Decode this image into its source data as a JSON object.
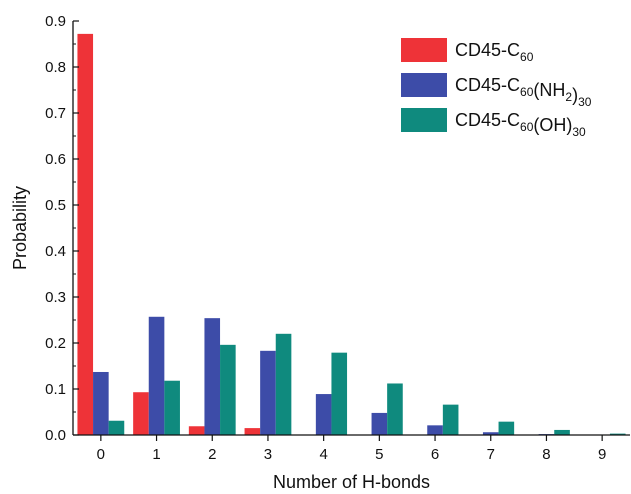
{
  "chart_data": {
    "type": "bar",
    "title": "",
    "xlabel": "Number of H-bonds",
    "ylabel": "Probability",
    "categories": [
      "0",
      "1",
      "2",
      "3",
      "4",
      "5",
      "6",
      "7",
      "8",
      "9"
    ],
    "ylim": [
      0,
      0.9
    ],
    "yticks": [
      "0.0",
      "0.1",
      "0.2",
      "0.3",
      "0.4",
      "0.5",
      "0.6",
      "0.7",
      "0.8",
      "0.9"
    ],
    "legend_position": "top-right",
    "grid": false,
    "series": [
      {
        "name": "CD45-C60",
        "legend_parts": [
          [
            "CD45-C",
            "n"
          ],
          [
            "60",
            "sub"
          ]
        ],
        "color": "#ee3338",
        "values": [
          0.872,
          0.093,
          0.019,
          0.015,
          0.0,
          0.0,
          0.0,
          0.0,
          0.0,
          0.0
        ]
      },
      {
        "name": "CD45-C60(NH2)30",
        "legend_parts": [
          [
            "CD45-C",
            "n"
          ],
          [
            "60",
            "sub"
          ],
          [
            "(NH",
            "n"
          ],
          [
            "2",
            "sub"
          ],
          [
            ")",
            "n"
          ],
          [
            "30",
            "sub"
          ]
        ],
        "color": "#3d4ca8",
        "values": [
          0.137,
          0.257,
          0.254,
          0.183,
          0.089,
          0.048,
          0.021,
          0.006,
          0.002,
          0.001
        ]
      },
      {
        "name": "CD45-C60(OH)30",
        "legend_parts": [
          [
            "CD45-C",
            "n"
          ],
          [
            "60",
            "sub"
          ],
          [
            "(OH)",
            "n"
          ],
          [
            "30",
            "sub"
          ]
        ],
        "color": "#0f8a7e",
        "values": [
          0.031,
          0.118,
          0.196,
          0.22,
          0.179,
          0.112,
          0.066,
          0.029,
          0.011,
          0.003
        ]
      }
    ]
  }
}
